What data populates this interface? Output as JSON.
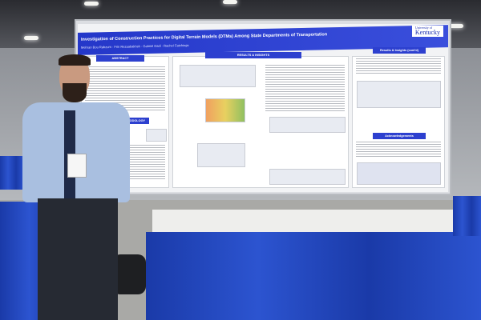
{
  "poster": {
    "title": "Investigation of Construction Practices for Digital Terrain Models (DTMs) Among State Departments of Transportation",
    "authors": "Mehran Bou Rabzum · Frin Rezaabakhsh · Gabriel Dadi · Rachel Catchings",
    "logo_line1": "University of",
    "logo_line2": "Kentucky",
    "sections": [
      "ABSTRACT",
      "METHODOLOGY",
      "RESULTS & INSIGHTS",
      "Results & Insights (cont'd)",
      "Acknowledgements"
    ],
    "brand_color": "#2d40cf"
  },
  "scene": {
    "table_cloth_color": "#2346c0"
  }
}
